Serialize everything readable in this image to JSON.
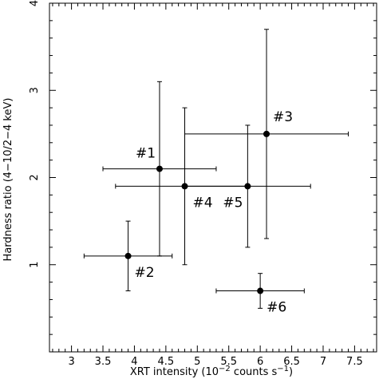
{
  "chart_data": {
    "type": "scatter",
    "xlabel": {
      "pre": "XRT intensity (10",
      "sup1": "−2",
      "mid": " counts s",
      "sup2": "−1",
      "post": ")"
    },
    "ylabel": "Hardness ratio (4−10/2−4 keV)",
    "xlim": [
      2.65,
      7.85
    ],
    "ylim": [
      0.0,
      4.0
    ],
    "x_ticks": [
      "3",
      "3.5",
      "4",
      "4.5",
      "5",
      "5.5",
      "6",
      "6.5",
      "7",
      "7.5"
    ],
    "y_ticks": [
      "1",
      "2",
      "3",
      "4"
    ],
    "grid": false,
    "points": [
      {
        "label": "#1",
        "x": 4.4,
        "y": 2.1,
        "x_err": [
          3.5,
          5.3
        ],
        "y_err": [
          1.1,
          3.1
        ]
      },
      {
        "label": "#2",
        "x": 3.9,
        "y": 1.1,
        "x_err": [
          3.2,
          4.6
        ],
        "y_err": [
          0.7,
          1.5
        ]
      },
      {
        "label": "#3",
        "x": 6.1,
        "y": 2.5,
        "x_err": [
          4.8,
          7.4
        ],
        "y_err": [
          1.3,
          3.7
        ]
      },
      {
        "label": "#4",
        "x": 4.8,
        "y": 1.9,
        "x_err": [
          3.7,
          5.8
        ],
        "y_err": [
          1.0,
          2.8
        ]
      },
      {
        "label": "#5",
        "x": 5.8,
        "y": 1.9,
        "x_err": [
          4.8,
          6.8
        ],
        "y_err": [
          1.2,
          2.6
        ]
      },
      {
        "label": "#6",
        "x": 6.0,
        "y": 0.7,
        "x_err": [
          5.3,
          6.7
        ],
        "y_err": [
          0.5,
          0.9
        ]
      }
    ]
  }
}
